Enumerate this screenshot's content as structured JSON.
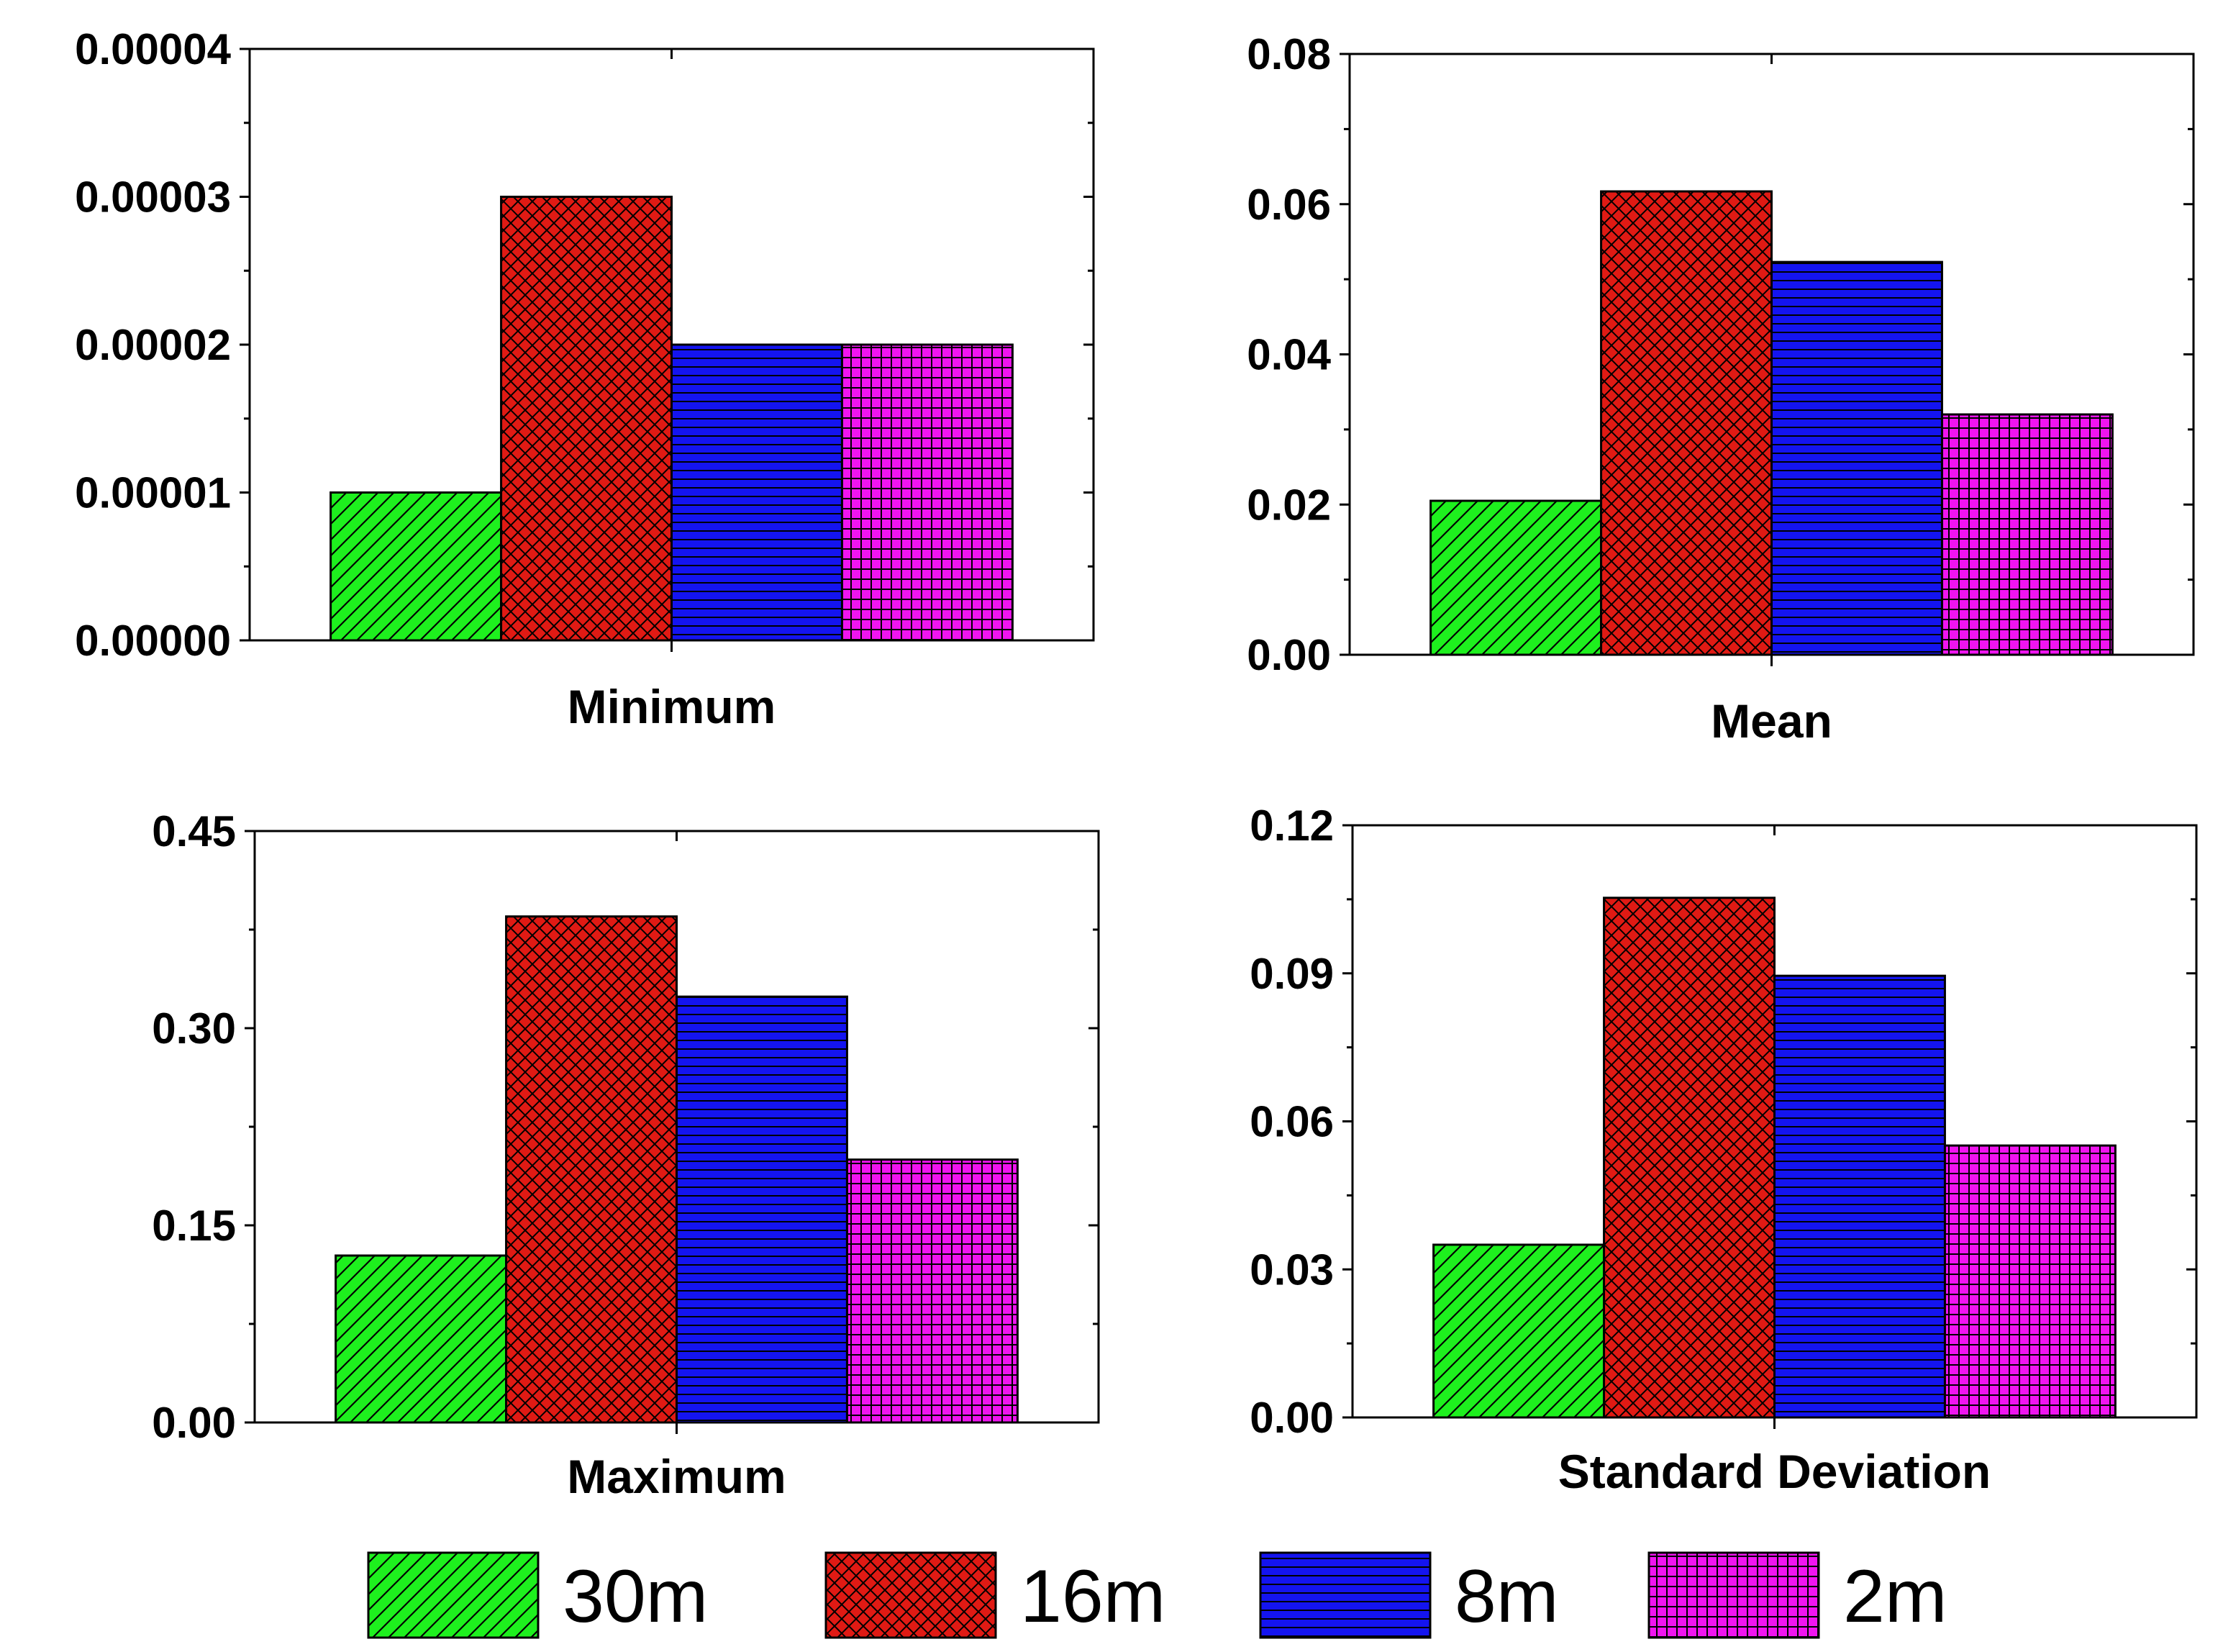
{
  "series_styles": [
    {
      "name": "30m",
      "color": "#1ef01e",
      "pattern": "diag"
    },
    {
      "name": "16m",
      "color": "#e01a14",
      "pattern": "cross"
    },
    {
      "name": "8m",
      "color": "#1414f0",
      "pattern": "hlines"
    },
    {
      "name": "2m",
      "color": "#f014f0",
      "pattern": "grid"
    }
  ],
  "legend": [
    "30m",
    "16m",
    "8m",
    "2m"
  ],
  "chart_data": [
    {
      "type": "bar",
      "title": "",
      "xlabel": "Minimum",
      "ylabel": "",
      "categories": [
        "Minimum"
      ],
      "series": [
        {
          "name": "30m",
          "values": [
            1e-05
          ]
        },
        {
          "name": "16m",
          "values": [
            3e-05
          ]
        },
        {
          "name": "8m",
          "values": [
            2e-05
          ]
        },
        {
          "name": "2m",
          "values": [
            2e-05
          ]
        }
      ],
      "ylim": [
        0,
        4e-05
      ],
      "yticks": [
        0,
        1e-05,
        2e-05,
        3e-05,
        4e-05
      ],
      "ytick_labels": [
        "0.00000",
        "0.00001",
        "0.00002",
        "0.00003",
        "0.00004"
      ]
    },
    {
      "type": "bar",
      "title": "",
      "xlabel": "Mean",
      "ylabel": "",
      "categories": [
        "Mean"
      ],
      "series": [
        {
          "name": "30m",
          "values": [
            0.0205
          ]
        },
        {
          "name": "16m",
          "values": [
            0.0617
          ]
        },
        {
          "name": "8m",
          "values": [
            0.0523
          ]
        },
        {
          "name": "2m",
          "values": [
            0.032
          ]
        }
      ],
      "ylim": [
        0,
        0.08
      ],
      "yticks": [
        0,
        0.02,
        0.04,
        0.06,
        0.08
      ],
      "ytick_labels": [
        "0.00",
        "0.02",
        "0.04",
        "0.06",
        "0.08"
      ]
    },
    {
      "type": "bar",
      "title": "",
      "xlabel": "Maximum",
      "ylabel": "",
      "categories": [
        "Maximum"
      ],
      "series": [
        {
          "name": "30m",
          "values": [
            0.127
          ]
        },
        {
          "name": "16m",
          "values": [
            0.385
          ]
        },
        {
          "name": "8m",
          "values": [
            0.324
          ]
        },
        {
          "name": "2m",
          "values": [
            0.2
          ]
        }
      ],
      "ylim": [
        0,
        0.45
      ],
      "yticks": [
        0,
        0.15,
        0.3,
        0.45
      ],
      "ytick_labels": [
        "0.00",
        "0.15",
        "0.30",
        "0.45"
      ]
    },
    {
      "type": "bar",
      "title": "",
      "xlabel": "Standard Deviation",
      "ylabel": "",
      "categories": [
        "Standard Deviation"
      ],
      "series": [
        {
          "name": "30m",
          "values": [
            0.035
          ]
        },
        {
          "name": "16m",
          "values": [
            0.1053
          ]
        },
        {
          "name": "8m",
          "values": [
            0.0895
          ]
        },
        {
          "name": "2m",
          "values": [
            0.0551
          ]
        }
      ],
      "ylim": [
        0,
        0.12
      ],
      "yticks": [
        0,
        0.03,
        0.06,
        0.09,
        0.12
      ],
      "ytick_labels": [
        "0.00",
        "0.03",
        "0.06",
        "0.09",
        "0.12"
      ]
    }
  ]
}
